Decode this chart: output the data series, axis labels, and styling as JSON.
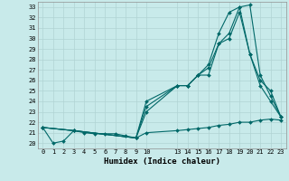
{
  "xlabel": "Humidex (Indice chaleur)",
  "background_color": "#c8eaea",
  "grid_color": "#b0d4d4",
  "line_color": "#006868",
  "xlim": [
    -0.5,
    23.5
  ],
  "ylim": [
    19.5,
    33.5
  ],
  "xticks": [
    0,
    1,
    2,
    3,
    4,
    5,
    6,
    7,
    8,
    9,
    10,
    13,
    14,
    15,
    16,
    17,
    18,
    19,
    20,
    21,
    22,
    23
  ],
  "yticks": [
    20,
    21,
    22,
    23,
    24,
    25,
    26,
    27,
    28,
    29,
    30,
    31,
    32,
    33
  ],
  "series": [
    {
      "x": [
        0,
        1,
        2,
        3,
        4,
        5,
        6,
        7,
        8,
        9,
        10,
        13,
        14,
        15,
        16,
        17,
        18,
        19,
        20,
        21,
        22,
        23
      ],
      "y": [
        21.5,
        20.0,
        20.2,
        21.2,
        21.0,
        20.9,
        20.9,
        20.9,
        20.7,
        20.5,
        21.0,
        21.2,
        21.3,
        21.4,
        21.5,
        21.7,
        21.8,
        22.0,
        22.0,
        22.2,
        22.3,
        22.2
      ]
    },
    {
      "x": [
        0,
        3,
        9,
        10,
        13,
        14,
        15,
        16,
        17,
        18,
        19,
        20,
        21,
        22,
        23
      ],
      "y": [
        21.5,
        21.2,
        20.5,
        23.5,
        25.5,
        25.5,
        26.5,
        27.2,
        29.5,
        30.5,
        33.0,
        33.2,
        26.5,
        24.5,
        22.5
      ]
    },
    {
      "x": [
        0,
        3,
        9,
        10,
        13,
        14,
        15,
        16,
        17,
        18,
        19,
        20,
        21,
        22,
        23
      ],
      "y": [
        21.5,
        21.2,
        20.5,
        24.0,
        25.5,
        25.5,
        26.5,
        27.5,
        30.5,
        32.5,
        33.0,
        28.5,
        25.5,
        24.0,
        22.5
      ]
    },
    {
      "x": [
        0,
        3,
        9,
        10,
        13,
        14,
        15,
        16,
        17,
        18,
        19,
        20,
        21,
        22,
        23
      ],
      "y": [
        21.5,
        21.2,
        20.5,
        23.0,
        25.5,
        25.5,
        26.5,
        26.5,
        29.5,
        30.0,
        32.5,
        28.5,
        26.0,
        25.0,
        22.5
      ]
    }
  ]
}
